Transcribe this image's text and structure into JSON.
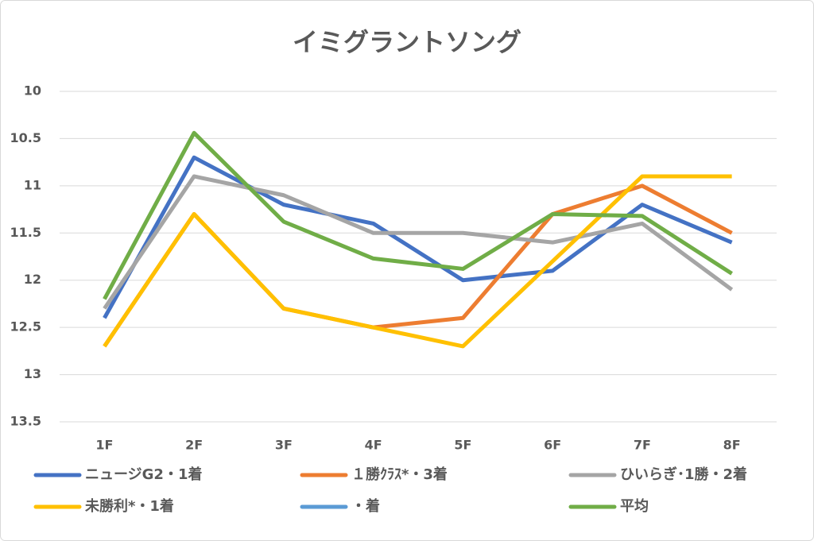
{
  "chart_data": {
    "type": "line",
    "title": "イミグラントソング",
    "categories": [
      "1F",
      "2F",
      "3F",
      "4F",
      "5F",
      "6F",
      "7F",
      "8F"
    ],
    "ylim": [
      10,
      13.5
    ],
    "yticks": [
      10,
      10.5,
      11,
      11.5,
      12,
      12.5,
      13,
      13.5
    ],
    "y_inverted": true,
    "grid": true,
    "legend": "bottom",
    "series": [
      {
        "name": "ニュージG2・1着",
        "color": "#4472c4",
        "values": [
          12.4,
          10.7,
          11.2,
          11.4,
          12.0,
          11.9,
          11.2,
          11.6
        ]
      },
      {
        "name": "１勝ｸﾗｽ*・3着",
        "color": "#ed7d31",
        "values": [
          12.7,
          11.3,
          12.3,
          12.5,
          12.4,
          11.3,
          11.0,
          11.5
        ]
      },
      {
        "name": "ひいらぎ･1勝・2着",
        "color": "#a5a5a5",
        "values": [
          12.3,
          10.9,
          11.1,
          11.5,
          11.5,
          11.6,
          11.4,
          12.1
        ]
      },
      {
        "name": "未勝利*・1着",
        "color": "#ffc000",
        "values": [
          12.7,
          11.3,
          12.3,
          12.5,
          12.7,
          11.8,
          10.9,
          10.9
        ]
      },
      {
        "name": "・着",
        "color": "#5b9bd5",
        "values": [
          null,
          null,
          null,
          null,
          null,
          null,
          null,
          null
        ]
      },
      {
        "name": "平均",
        "color": "#70ad47",
        "values": [
          12.2,
          10.44,
          11.38,
          11.77,
          11.88,
          11.3,
          11.32,
          11.93
        ]
      }
    ]
  }
}
